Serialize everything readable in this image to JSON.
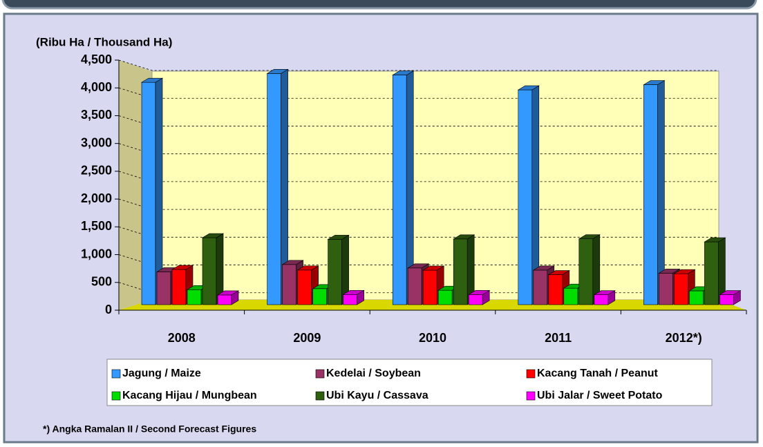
{
  "chart_data": {
    "type": "bar3d",
    "y_label": "(Ribu Ha / Thousand Ha)",
    "footnote": "*) Angka Ramalan II / Second Forecast Figures",
    "categories": [
      "2008",
      "2009",
      "2010",
      "2011",
      "2012*)"
    ],
    "series": [
      {
        "name": "Jagung / Maize",
        "color": "#3399ff",
        "values": [
          4001,
          4160,
          4132,
          3865,
          3958
        ]
      },
      {
        "name": "Kedelai / Soybean",
        "color": "#993366",
        "values": [
          591,
          723,
          661,
          622,
          567
        ]
      },
      {
        "name": "Kacang Tanah / Peanut",
        "color": "#ff0000",
        "values": [
          633,
          623,
          621,
          540,
          557
        ]
      },
      {
        "name": "Kacang Hijau / Mungbean",
        "color": "#00dd00",
        "values": [
          270,
          288,
          259,
          296,
          249
        ]
      },
      {
        "name": "Ubi Kayu / Cassava",
        "color": "#2f6010",
        "values": [
          1205,
          1176,
          1183,
          1185,
          1130
        ]
      },
      {
        "name": "Ubi Jalar / Sweet Potato",
        "color": "#ff00ff",
        "values": [
          175,
          183,
          182,
          178,
          180
        ]
      }
    ],
    "ylim": [
      0,
      4500
    ],
    "yticks": [
      0,
      500,
      {
        "value": 1000,
        "label": "1,000"
      },
      {
        "value": 1500,
        "label": "1,500"
      },
      {
        "value": 2000,
        "label": "2,000"
      },
      {
        "value": 2500,
        "label": "2,500"
      },
      {
        "value": 3000,
        "label": "3,000"
      },
      {
        "value": 3500,
        "label": "3,500"
      },
      {
        "value": 4000,
        "label": "4,000"
      },
      {
        "value": 4500,
        "label": "4,500"
      }
    ],
    "grid": true
  }
}
